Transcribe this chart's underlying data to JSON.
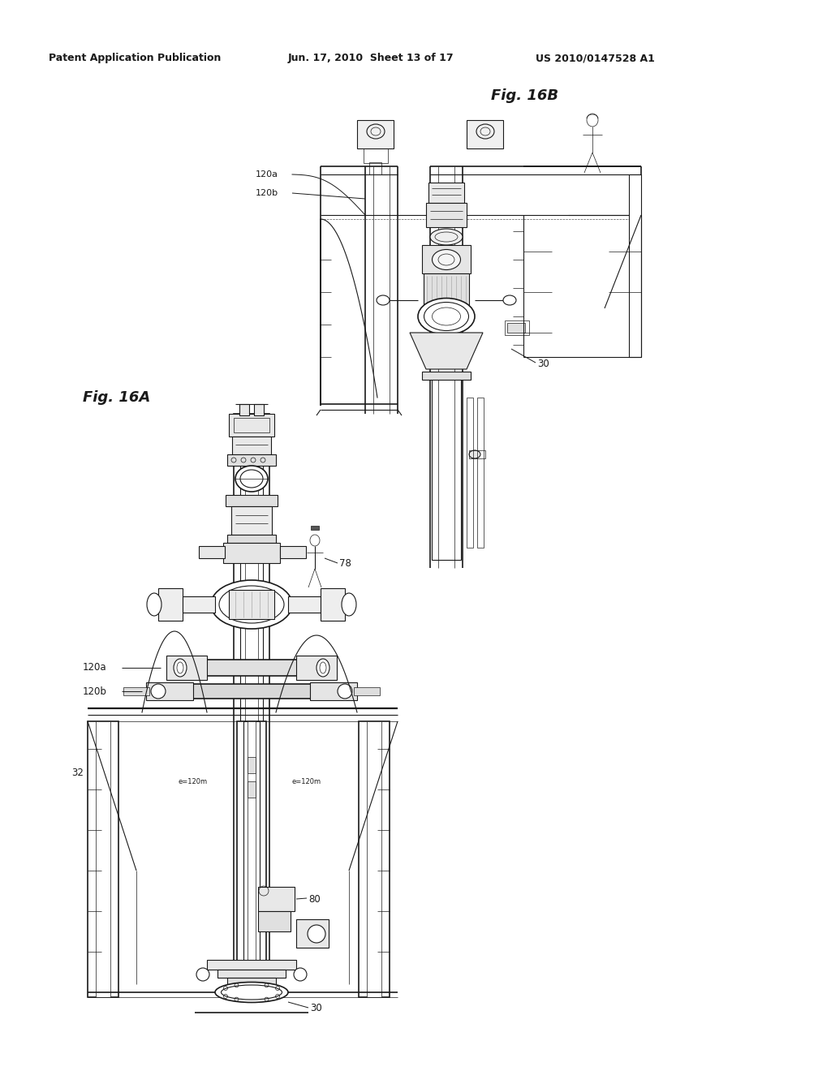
{
  "page_width": 10.24,
  "page_height": 13.2,
  "bg_color": "#ffffff",
  "header_text_left": "Patent Application Publication",
  "header_text_mid": "Jun. 17, 2010  Sheet 13 of 17",
  "header_text_right": "US 2010/0147528 A1",
  "fig16a_label": "Fig. 16A",
  "fig16b_label": "Fig. 16B",
  "line_color": "#1a1a1a"
}
